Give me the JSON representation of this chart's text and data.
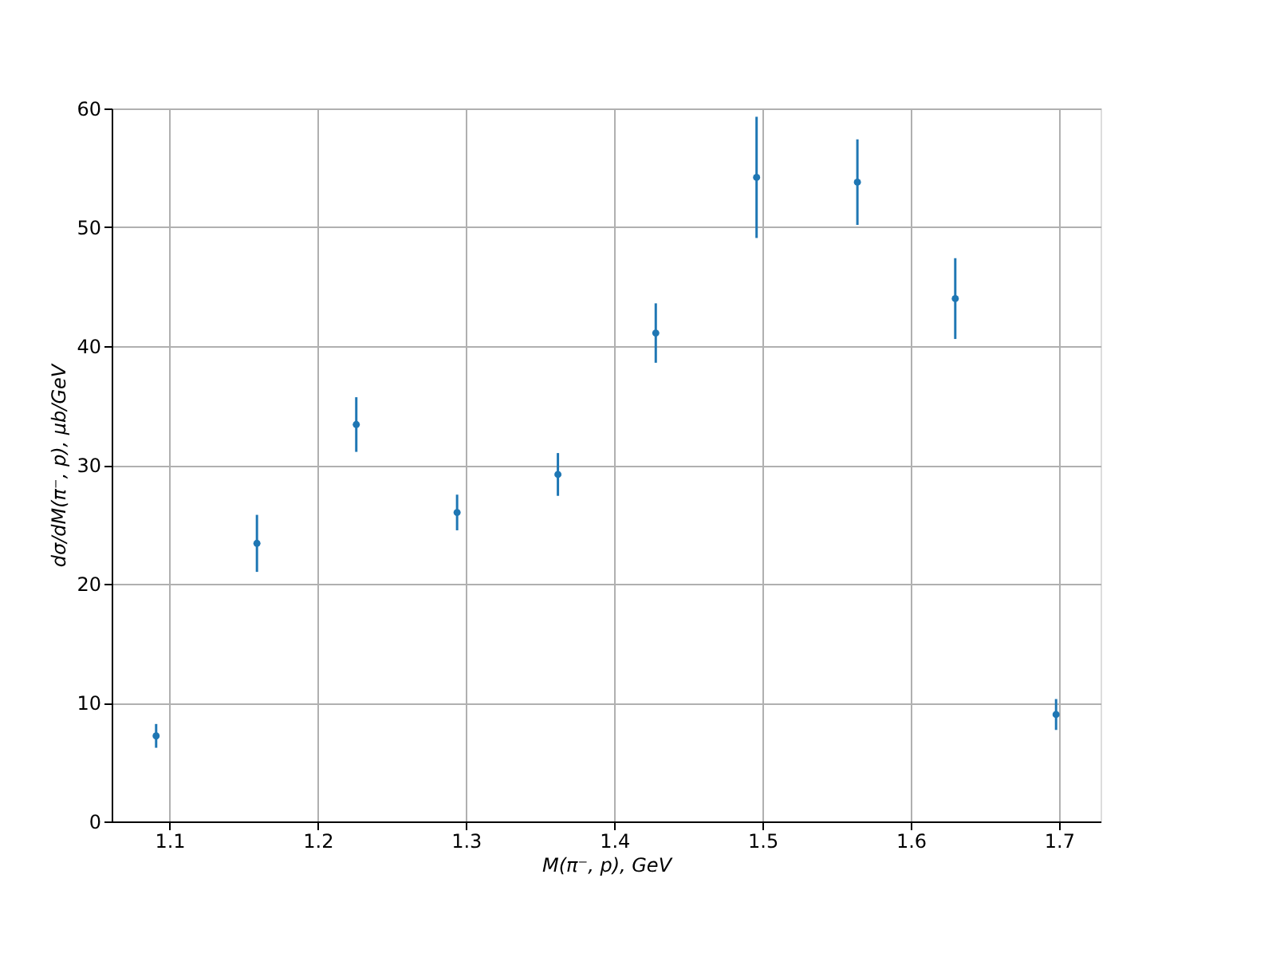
{
  "chart_data": {
    "type": "scatter",
    "xlabel": "M(π⁻, p), GeV",
    "ylabel": "dσ/dM(π⁻, p), μb/GeV",
    "x": [
      1.091,
      1.159,
      1.226,
      1.294,
      1.362,
      1.428,
      1.496,
      1.564,
      1.63,
      1.698
    ],
    "series": [
      {
        "color": "#1f77b4",
        "values": [
          7.2,
          23.4,
          33.4,
          26.0,
          29.2,
          41.1,
          54.2,
          53.8,
          44.0,
          9.0
        ],
        "errors": [
          1.0,
          2.4,
          2.3,
          1.5,
          1.8,
          2.5,
          5.1,
          3.6,
          3.4,
          1.3
        ]
      }
    ],
    "xlim": [
      1.061,
      1.728
    ],
    "xticks": [
      1.1,
      1.2,
      1.3,
      1.4,
      1.5,
      1.6,
      1.7
    ],
    "ylim": [
      0,
      60
    ],
    "yticks": [
      0,
      10,
      20,
      30,
      40,
      50,
      60
    ],
    "grid": true,
    "marker": "circle"
  }
}
